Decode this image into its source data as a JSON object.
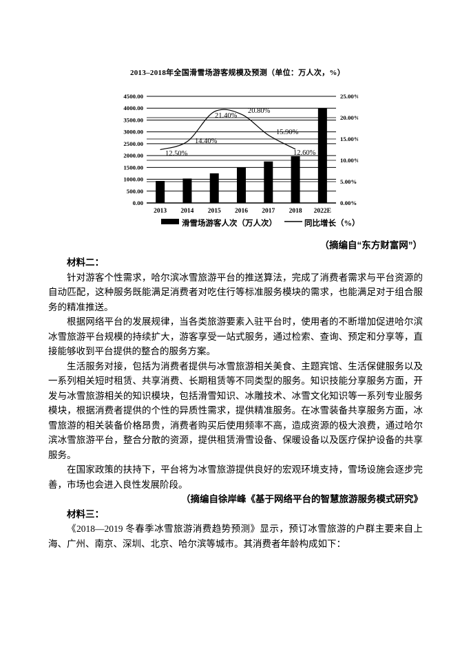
{
  "chart": {
    "title": "2013–2018年全国滑雪场游客规模及预测（单位：万人次，%）",
    "source_note": "（摘编自“东方财富网”）"
  },
  "chart_data": {
    "type": "bar",
    "subtype": "combo-bar-line",
    "title": "2013–2018年全国滑雪场游客规模及预测（单位：万人次，%）",
    "categories": [
      "2013",
      "2014",
      "2015",
      "2016",
      "2017",
      "2018",
      "2022E"
    ],
    "series": [
      {
        "name": "滑雪场游客人次（万人次）",
        "type": "bar",
        "axis": "left",
        "values": [
          930,
          1030,
          1250,
          1510,
          1750,
          1970,
          4000
        ]
      },
      {
        "name": "同比增长（%）",
        "type": "line",
        "axis": "right",
        "values": [
          12.5,
          14.4,
          21.4,
          20.8,
          15.9,
          12.6,
          null
        ],
        "point_labels": [
          "12.50%",
          "14.40%",
          "21.40%",
          "20.80%",
          "15.90%",
          "12.60%",
          ""
        ]
      }
    ],
    "left_axis": {
      "min": 0,
      "max": 4500,
      "step": 500,
      "decimals": 2
    },
    "right_axis": {
      "min": 0,
      "max": 25,
      "step": 5,
      "decimals": 2,
      "suffix": "%"
    },
    "legend_position": "bottom",
    "grid": true,
    "bar_color": "#000000",
    "line_color": "#000000",
    "grid_color_major": "#000000",
    "grid_color_secondary": "#9a9a9a"
  },
  "material2": {
    "heading": "材料二：",
    "paragraphs": [
      "针对游客个性需求，哈尔滨冰雪旅游平台的推送算法，完成了消费者需求与平台资源的自动匹配，这种服务既能满足消费者对吃住行等标准服务模块的需求，也能满足对于组合服务的精准推送。",
      "根据网络平台的发展规律，当各类旅游要素入驻平台时，使用者的不断增加促进哈尔滨冰雪旅游平台规模的持续扩大，游客享受一站式服务，通过检索、查询、预定和分享等，直接能够收到平台提供的整合的服务方案。",
      "生活服务对接，包括为消费者提供与冰雪旅游相关美食、主题宾馆、生活保健服务以及一系列相关短时租赁、共享消费、长期租赁等不同类型的服务。知识技能分享服务方面，开发与冰雪旅游相关的知识模块，包括滑雪知识、冰雕技术、冰雪文化知识等一系列专业服务模块，根据消费者提供的个性的异质性需求，提供精准服务。在冰雪装备共享服务方面，冰雪旅游的相关装备价格昂贵，消费者购买后使用频率不高，造成资源的极大浪费，通过哈尔滨冰雪旅游平台，整合分散的资源，提供租赁滑雪设备、保暖设备以及医疗保护设备的共享服务。",
      "在国家政策的扶持下，平台将为冰雪旅游提供良好的宏观环境支持，雪场设施会逐步完善，市场也会进入良性发展阶段。"
    ],
    "source_note": "（摘编自徐岸峰《基于网络平台的智慧旅游服务模式研究》"
  },
  "material3": {
    "heading": "材料三：",
    "paragraphs": [
      "《2018—2019 冬春季冰雪旅游消费趋势预测》显示，预订冰雪旅游的户群主要来自上海、广州、南京、深圳、北京、哈尔滨等城市。其消费者年龄构成如下："
    ]
  }
}
